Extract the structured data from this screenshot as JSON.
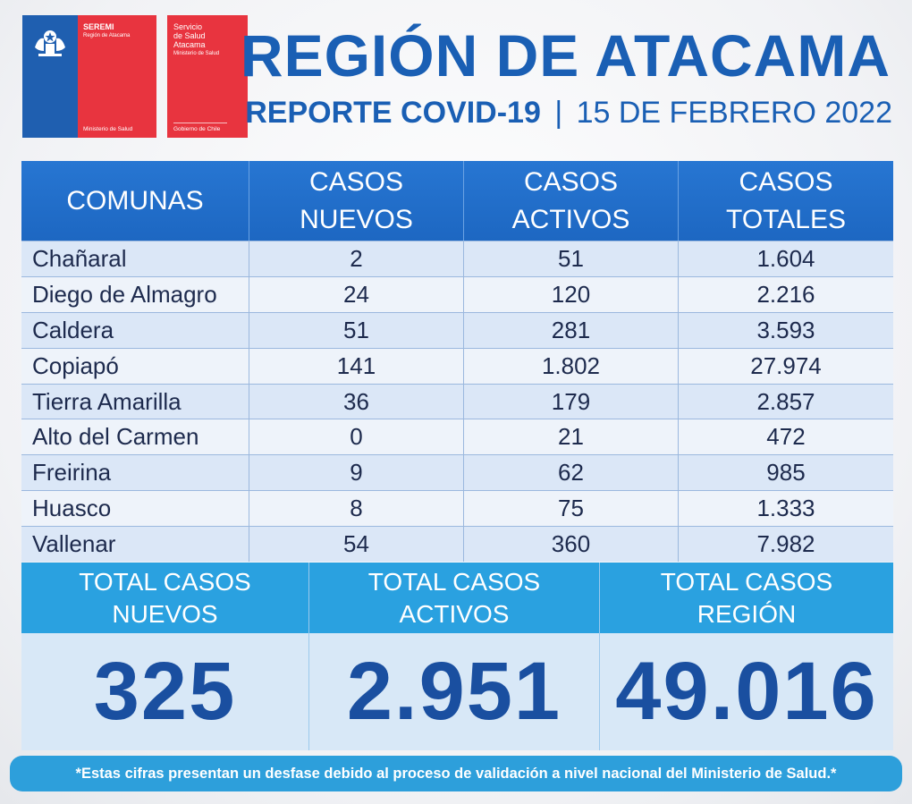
{
  "logos": {
    "seremi": {
      "name": "SEREMI",
      "region": "Región de Atacama",
      "ministry": "Ministerio de Salud"
    },
    "servicio": {
      "line1": "Servicio",
      "line2": "de Salud",
      "line3": "Atacama",
      "ministry": "Ministerio de Salud",
      "government": "Gobierno de Chile"
    }
  },
  "header": {
    "title": "REGIÓN DE ATACAMA",
    "report": "REPORTE COVID-19",
    "separator": "|",
    "date": "15 DE FEBRERO 2022"
  },
  "table": {
    "columns": [
      {
        "line1": "COMUNAS",
        "line2": ""
      },
      {
        "line1": "CASOS",
        "line2": "NUEVOS"
      },
      {
        "line1": "CASOS",
        "line2": "ACTIVOS"
      },
      {
        "line1": "CASOS",
        "line2": "TOTALES"
      }
    ],
    "rows": [
      {
        "comuna": "Chañaral",
        "nuevos": "2",
        "activos": "51",
        "totales": "1.604"
      },
      {
        "comuna": "Diego de Almagro",
        "nuevos": "24",
        "activos": "120",
        "totales": "2.216"
      },
      {
        "comuna": "Caldera",
        "nuevos": "51",
        "activos": "281",
        "totales": "3.593"
      },
      {
        "comuna": "Copiapó",
        "nuevos": "141",
        "activos": "1.802",
        "totales": "27.974"
      },
      {
        "comuna": "Tierra Amarilla",
        "nuevos": "36",
        "activos": "179",
        "totales": "2.857"
      },
      {
        "comuna": "Alto del Carmen",
        "nuevos": "0",
        "activos": "21",
        "totales": "472"
      },
      {
        "comuna": "Freirina",
        "nuevos": "9",
        "activos": "62",
        "totales": "985"
      },
      {
        "comuna": "Huasco",
        "nuevos": "8",
        "activos": "75",
        "totales": "1.333"
      },
      {
        "comuna": "Vallenar",
        "nuevos": "54",
        "activos": "360",
        "totales": "7.982"
      }
    ]
  },
  "totals": [
    {
      "line1": "TOTAL CASOS",
      "line2": "NUEVOS",
      "value": "325"
    },
    {
      "line1": "TOTAL CASOS",
      "line2": "ACTIVOS",
      "value": "2.951"
    },
    {
      "line1": "TOTAL CASOS",
      "line2": "REGIÓN",
      "value": "49.016"
    }
  ],
  "footnote": "*Estas cifras presentan un desfase debido al proceso de validación a nivel nacional del Ministerio de Salud.*",
  "colors": {
    "brand_blue": "#1a5fb4",
    "flag_red": "#e8343f",
    "header_blue": "#2776d2",
    "totals_blue": "#2aa1e0"
  }
}
